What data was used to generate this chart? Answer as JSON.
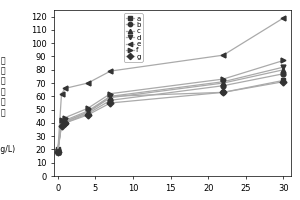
{
  "x": [
    0,
    0.5,
    1,
    4,
    7,
    22,
    30
  ],
  "series": {
    "a": [
      20,
      40,
      41,
      48,
      60,
      63,
      72
    ],
    "b": [
      19,
      39,
      40,
      47,
      57,
      68,
      77
    ],
    "c": [
      18,
      40,
      41,
      48,
      59,
      70,
      80
    ],
    "d": [
      19,
      41,
      42,
      49,
      60,
      71,
      82
    ],
    "e": [
      18,
      62,
      66,
      70,
      79,
      91,
      119
    ],
    "f": [
      19,
      42,
      44,
      51,
      62,
      73,
      87
    ],
    "g": [
      18,
      38,
      40,
      46,
      55,
      63,
      71
    ]
  },
  "markers": {
    "a": "s",
    "b": "o",
    "c": "^",
    "d": "v",
    "e": "<",
    "f": ">",
    "g": "D"
  },
  "ylabel_zh_chars": [
    "溶",
    "解",
    "性",
    "总",
    "固",
    "体"
  ],
  "ylabel_units": "mg/L",
  "xlim": [
    -0.5,
    31
  ],
  "ylim": [
    0,
    125
  ],
  "yticks": [
    0,
    10,
    20,
    30,
    40,
    50,
    60,
    70,
    80,
    90,
    100,
    110,
    120
  ],
  "xticks": [
    0,
    5,
    10,
    15,
    20,
    25,
    30
  ],
  "legend_order": [
    "a",
    "b",
    "c",
    "d",
    "e",
    "f",
    "g"
  ],
  "line_color": "#aaaaaa",
  "marker_color": "#333333"
}
